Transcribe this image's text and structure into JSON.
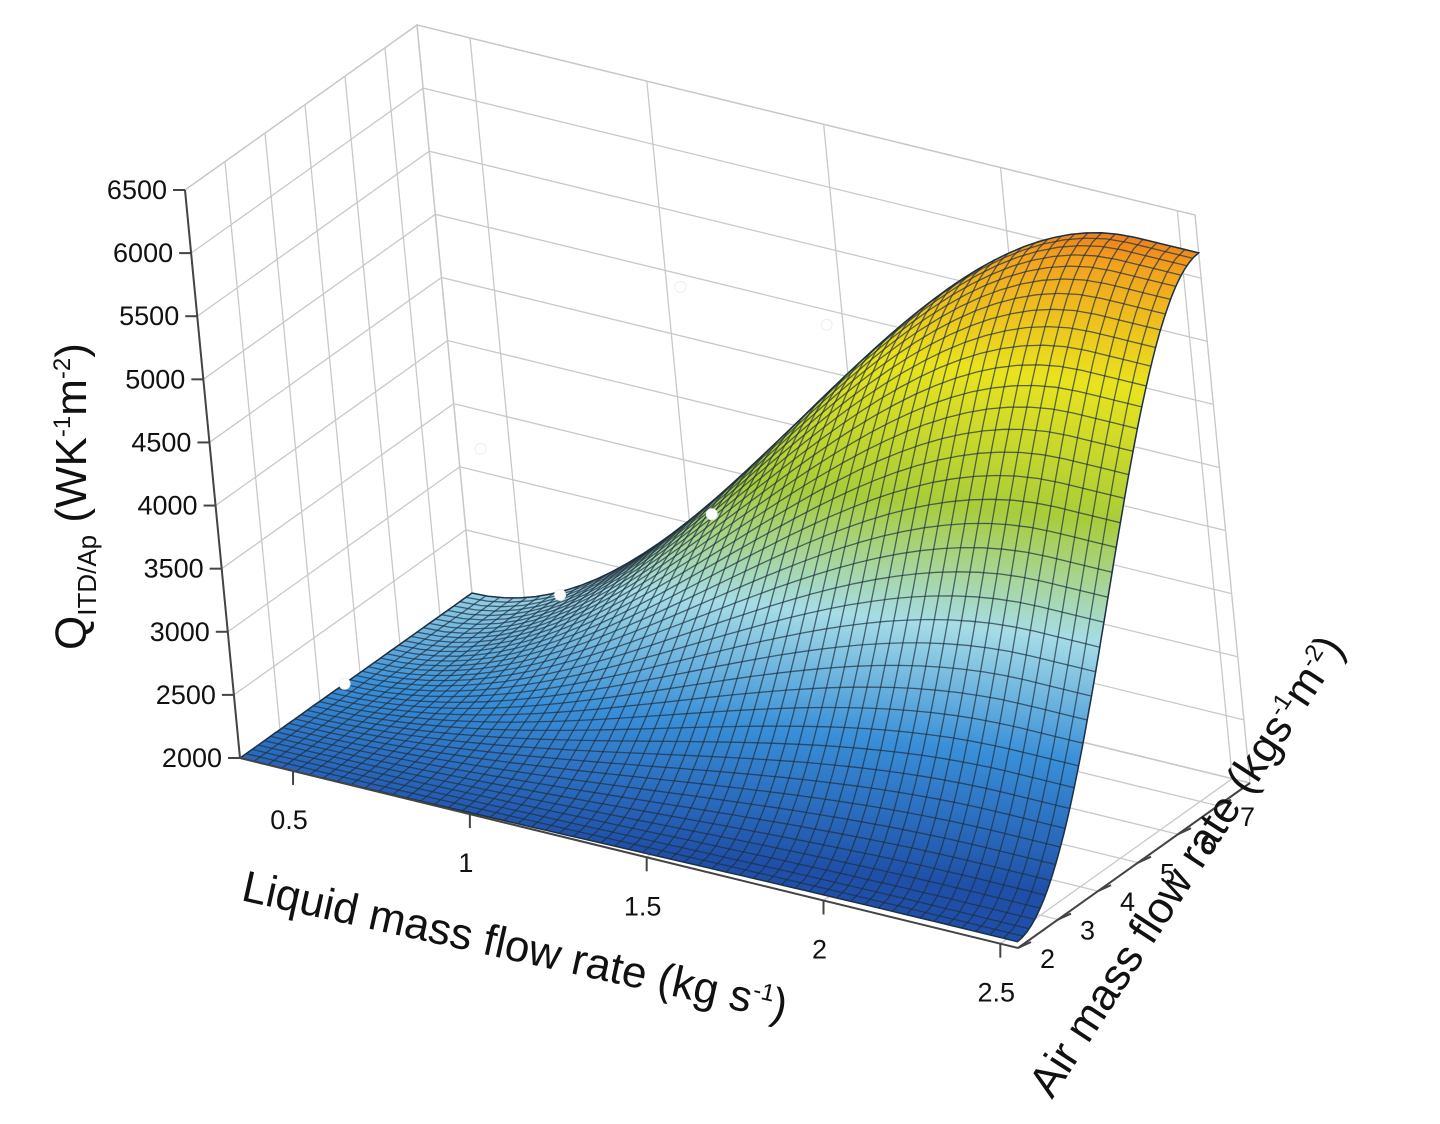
{
  "chart_data": {
    "type": "surface3d",
    "title": "",
    "axes": {
      "x": {
        "label": "Liquid mass flow rate (kg s",
        "label_sup": "-1",
        "label_end": ")",
        "range": [
          0.35,
          2.55
        ],
        "ticks": [
          "0.5",
          "1",
          "1.5",
          "2",
          "2.5"
        ]
      },
      "y": {
        "label": "Air mass flow rate  (kgs",
        "label_sup": "-1",
        "label_mid": "m",
        "label_sup2": "-2",
        "label_end": ")",
        "range": [
          2,
          7.8
        ],
        "ticks": [
          "2",
          "3",
          "4",
          "5",
          "6",
          "7"
        ]
      },
      "z": {
        "label": "Q",
        "label_sub": "ITD/Ap",
        "label_rest": " (WK",
        "label_sup": "-1",
        "label_mid": "m",
        "label_sup2": "-2",
        "label_end": ")",
        "range": [
          2000,
          6500
        ],
        "ticks": [
          "2000",
          "2500",
          "3000",
          "3500",
          "4000",
          "4500",
          "5000",
          "5500",
          "6000",
          "6500"
        ]
      }
    },
    "surface_corner_values": {
      "low_liquid": 2000,
      "high_liquid_low_air": 2050,
      "high_liquid_high_air": 6200
    },
    "colormap": [
      "#1f4fa8",
      "#3d9ee0",
      "#9fd8e8",
      "#96c83c",
      "#e6e020",
      "#f0a020",
      "#dc1e14"
    ],
    "data_points": [
      {
        "x": 0.55,
        "y": 3.0,
        "z": 2500
      },
      {
        "x": 0.7,
        "y": 5.5,
        "z": 3900
      },
      {
        "x": 1.1,
        "y": 3.8,
        "z": 3400
      },
      {
        "x": 1.2,
        "y": 6.5,
        "z": 5300
      },
      {
        "x": 1.5,
        "y": 4.3,
        "z": 4200
      },
      {
        "x": 1.7,
        "y": 5.8,
        "z": 5500
      }
    ],
    "grid": true
  }
}
